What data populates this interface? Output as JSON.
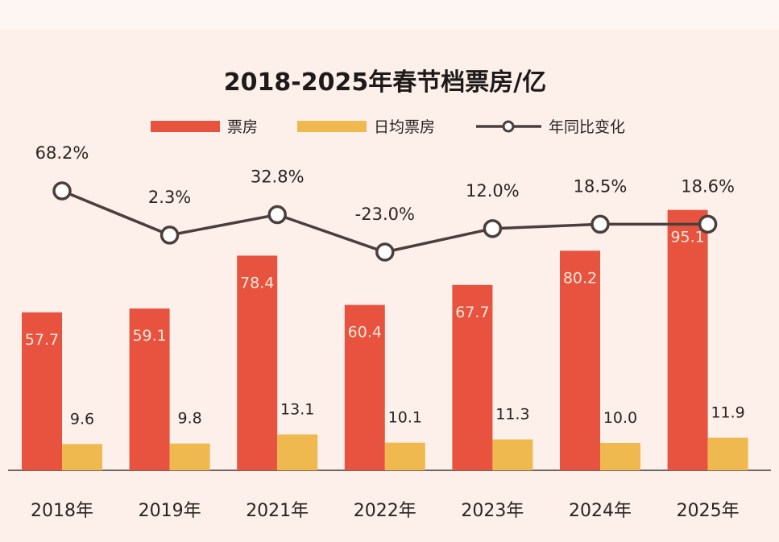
{
  "chart_data": {
    "type": "bar",
    "title": "2018-2025年春节档票房/亿",
    "categories": [
      "2018年",
      "2019年",
      "2021年",
      "2022年",
      "2023年",
      "2024年",
      "2025年"
    ],
    "series": [
      {
        "name": "票房",
        "type": "bar",
        "color": "#e8533f",
        "values": [
          57.7,
          59.1,
          78.4,
          60.4,
          67.7,
          80.2,
          95.1
        ]
      },
      {
        "name": "日均票房",
        "type": "bar",
        "color": "#f0b94f",
        "values": [
          9.6,
          9.8,
          13.1,
          10.1,
          11.3,
          10.0,
          11.9
        ]
      },
      {
        "name": "年同比变化",
        "type": "line",
        "color": "#4a3f3c",
        "unit": "%",
        "values": [
          68.2,
          2.3,
          32.8,
          -23.0,
          12.0,
          18.5,
          18.6
        ]
      }
    ],
    "data_labels": {
      "box_office": [
        "57.7",
        "59.1",
        "78.4",
        "60.4",
        "67.7",
        "80.2",
        "95.1"
      ],
      "daily": [
        "9.6",
        "9.8",
        "13.1",
        "10.1",
        "11.3",
        "10.0",
        "11.9"
      ],
      "yoy": [
        "68.2%",
        "2.3%",
        "32.8%",
        "-23.0%",
        "12.0%",
        "18.5%",
        "18.6%"
      ]
    },
    "legend": {
      "position": "top",
      "labels": [
        "票房",
        "日均票房",
        "年同比变化"
      ]
    },
    "grid": false
  }
}
